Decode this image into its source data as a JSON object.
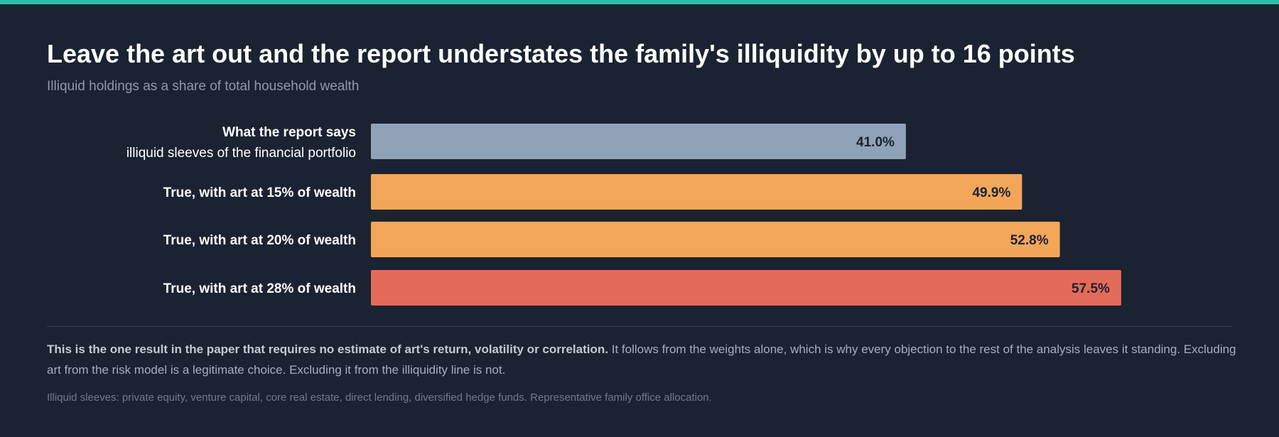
{
  "accent_color": "#2bbfa8",
  "title": "Leave the art out and the report understates the family's illiquidity by up to 16 points",
  "subtitle": "Illiquid holdings as a share of total household wealth",
  "chart_data": {
    "type": "bar",
    "orientation": "horizontal",
    "title": "Leave the art out and the report understates the family's illiquidity by up to 16 points",
    "subtitle": "Illiquid holdings as a share of total household wealth",
    "xlim": [
      0,
      66
    ],
    "grid": false,
    "categories": [
      {
        "label": "What the report says",
        "sublabel": "illiquid sleeves of the financial portfolio"
      },
      {
        "label": "True, with art at 15% of wealth",
        "sublabel": ""
      },
      {
        "label": "True, with art at 20% of wealth",
        "sublabel": ""
      },
      {
        "label": "True, with art at 28% of wealth",
        "sublabel": ""
      }
    ],
    "values": [
      41.0,
      49.9,
      52.8,
      57.5
    ],
    "value_labels": [
      "41.0%",
      "49.9%",
      "52.8%",
      "57.5%"
    ],
    "colors": [
      "#8fa2b8",
      "#f2a65a",
      "#f2a65a",
      "#e36b5a"
    ]
  },
  "note": {
    "bold": "This is the one result in the paper that requires no estimate of art's return, volatility or correlation.",
    "text": " It follows from the weights alone, which is why every objection to the rest of the analysis leaves it standing. Excluding art from the risk model is a legitimate choice. Excluding it from the illiquidity line is not."
  },
  "source": "Illiquid sleeves: private equity, venture capital, core real estate, direct lending, diversified hedge funds. Representative family office allocation."
}
